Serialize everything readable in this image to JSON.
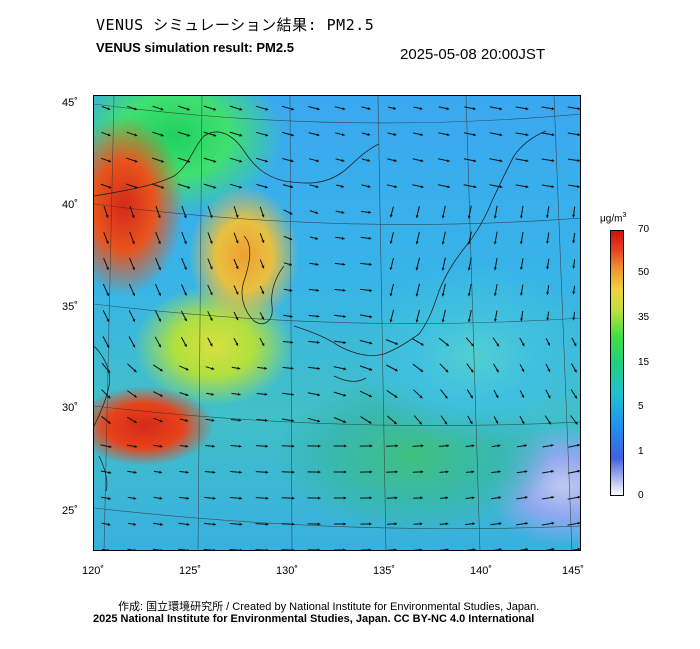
{
  "header": {
    "title_ja": "VENUS シミュレーション結果: PM2.5",
    "title_en": "VENUS simulation result: PM2.5",
    "timestamp": "2025-05-08 20:00JST"
  },
  "map": {
    "region": "East Asia / Japan",
    "variable": "PM2.5",
    "lat_labels": [
      "45˚",
      "40˚",
      "35˚",
      "30˚",
      "25˚"
    ],
    "lon_labels": [
      "120˚",
      "125˚",
      "130˚",
      "135˚",
      "140˚",
      "145˚"
    ],
    "features": [
      "wind-vectors",
      "coastlines",
      "graticule",
      "pm25-concentration-field"
    ],
    "colors": {
      "high": "#d42a1a",
      "mid_high": "#f0a030",
      "mid": "#40e040",
      "low": "#20c0d0",
      "very_low": "#2090f0",
      "minimum": "#ffffff"
    }
  },
  "legend": {
    "unit_base": "μg/m",
    "unit_exp": "3",
    "ticks": [
      "70",
      "50",
      "35",
      "15",
      "5",
      "1",
      "0"
    ]
  },
  "footer": {
    "credit_line": "作成: 国立環境研究所 / Created by National Institute for Environmental Studies, Japan.",
    "copyright_line": "2025 National Institute for Environmental Studies, Japan. CC BY-NC 4.0 International"
  }
}
